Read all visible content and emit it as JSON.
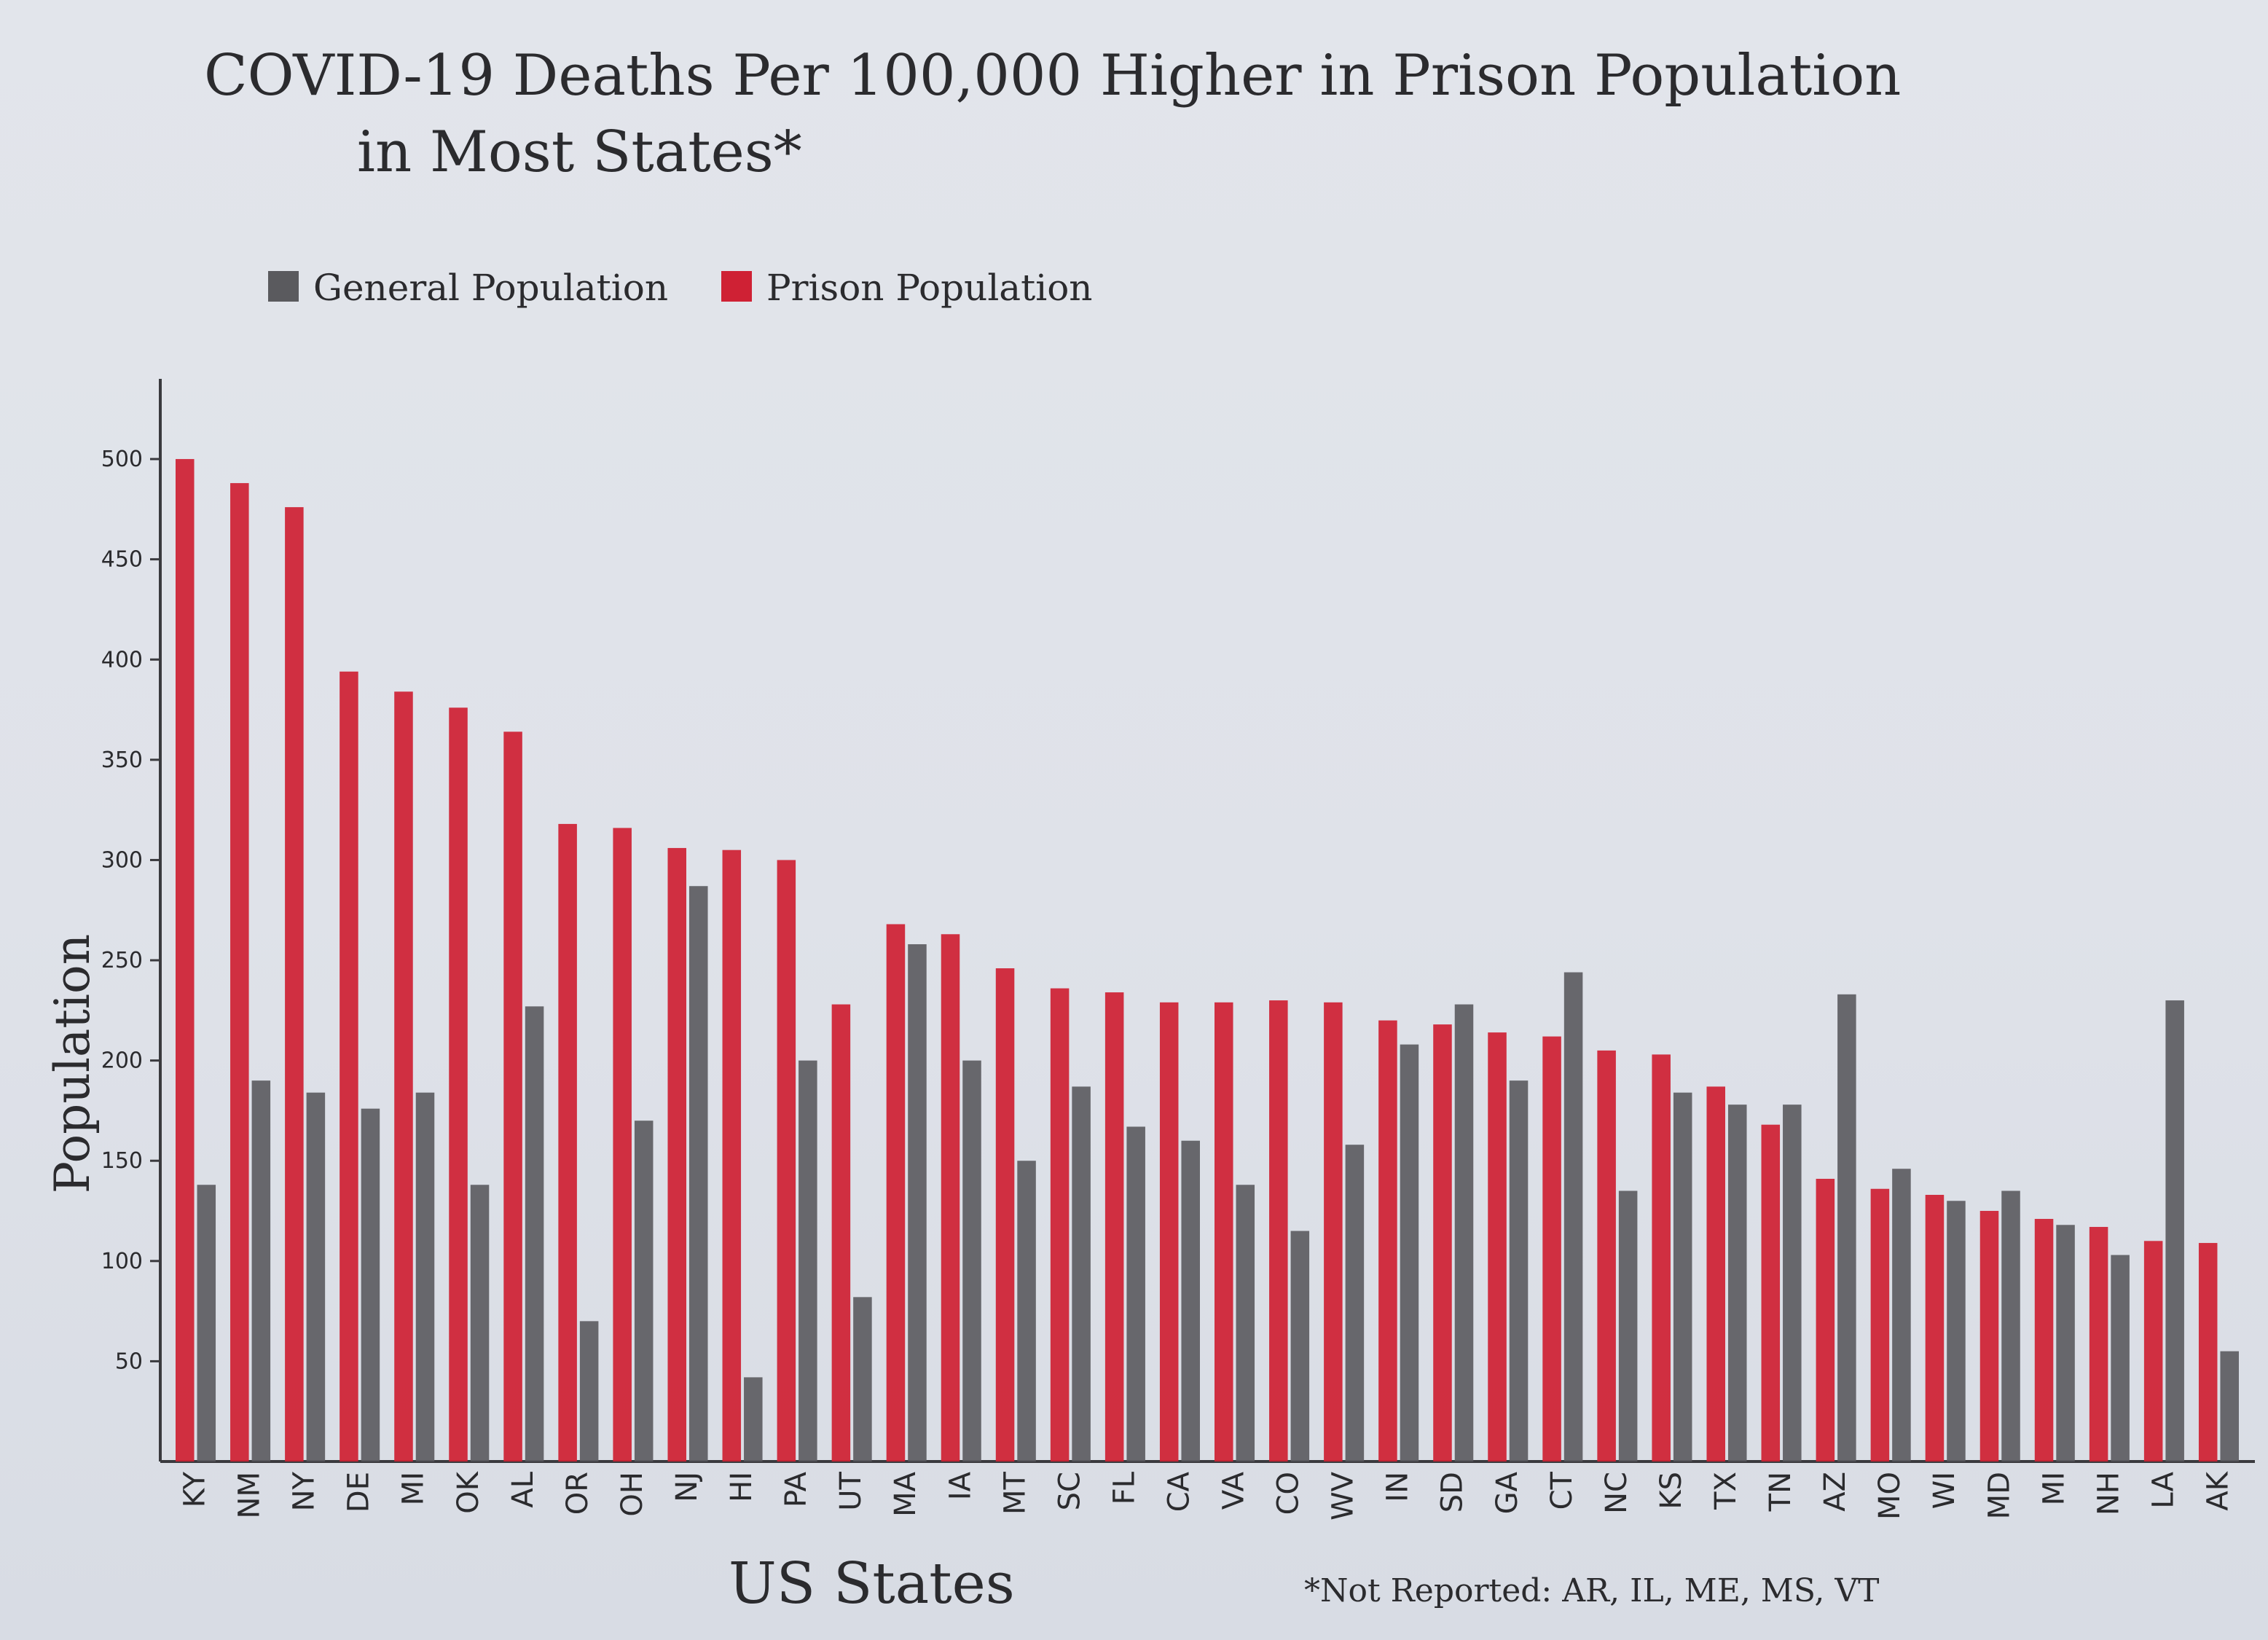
{
  "chart_data": {
    "type": "bar",
    "title_line1": "COVID-19 Deaths Per 100,000 Higher in Prison Population",
    "title_line2": "in Most States*",
    "xlabel": "US States",
    "ylabel": "Population",
    "footnote": "*Not Reported: AR, IL, ME, MS, VT",
    "ylim": [
      0,
      540
    ],
    "yticks": [
      "50",
      "100",
      "150",
      "200",
      "250",
      "300",
      "350",
      "400",
      "450",
      "500"
    ],
    "legend": {
      "position": "top-left"
    },
    "categories": [
      "KY",
      "NM",
      "NY",
      "DE",
      "MI",
      "OK",
      "AL",
      "OR",
      "OH",
      "NJ",
      "HI",
      "PA",
      "UT",
      "MA",
      "IA",
      "MT",
      "SC",
      "FL",
      "CA",
      "VA",
      "CO",
      "WV",
      "IN",
      "SD",
      "GA",
      "CT",
      "NC",
      "KS",
      "TX",
      "TN",
      "AZ",
      "MO",
      "WI",
      "MD",
      "MI",
      "NH",
      "LA",
      "AK"
    ],
    "series": [
      {
        "name": "General Population",
        "color": "#5a5a5e",
        "values": [
          138,
          190,
          184,
          176,
          184,
          138,
          227,
          70,
          170,
          287,
          42,
          200,
          82,
          258,
          200,
          150,
          187,
          167,
          160,
          138,
          115,
          158,
          208,
          228,
          190,
          244,
          135,
          184,
          178,
          178,
          233,
          146,
          130,
          135,
          118,
          103,
          230,
          55
        ]
      },
      {
        "name": "Prison Population",
        "color": "#cf2134",
        "values": [
          500,
          488,
          476,
          394,
          384,
          376,
          364,
          318,
          316,
          306,
          305,
          300,
          228,
          268,
          263,
          246,
          236,
          234,
          229,
          229,
          230,
          229,
          220,
          218,
          214,
          212,
          205,
          203,
          187,
          168,
          141,
          136,
          133,
          125,
          121,
          117,
          110,
          109
        ]
      }
    ]
  }
}
